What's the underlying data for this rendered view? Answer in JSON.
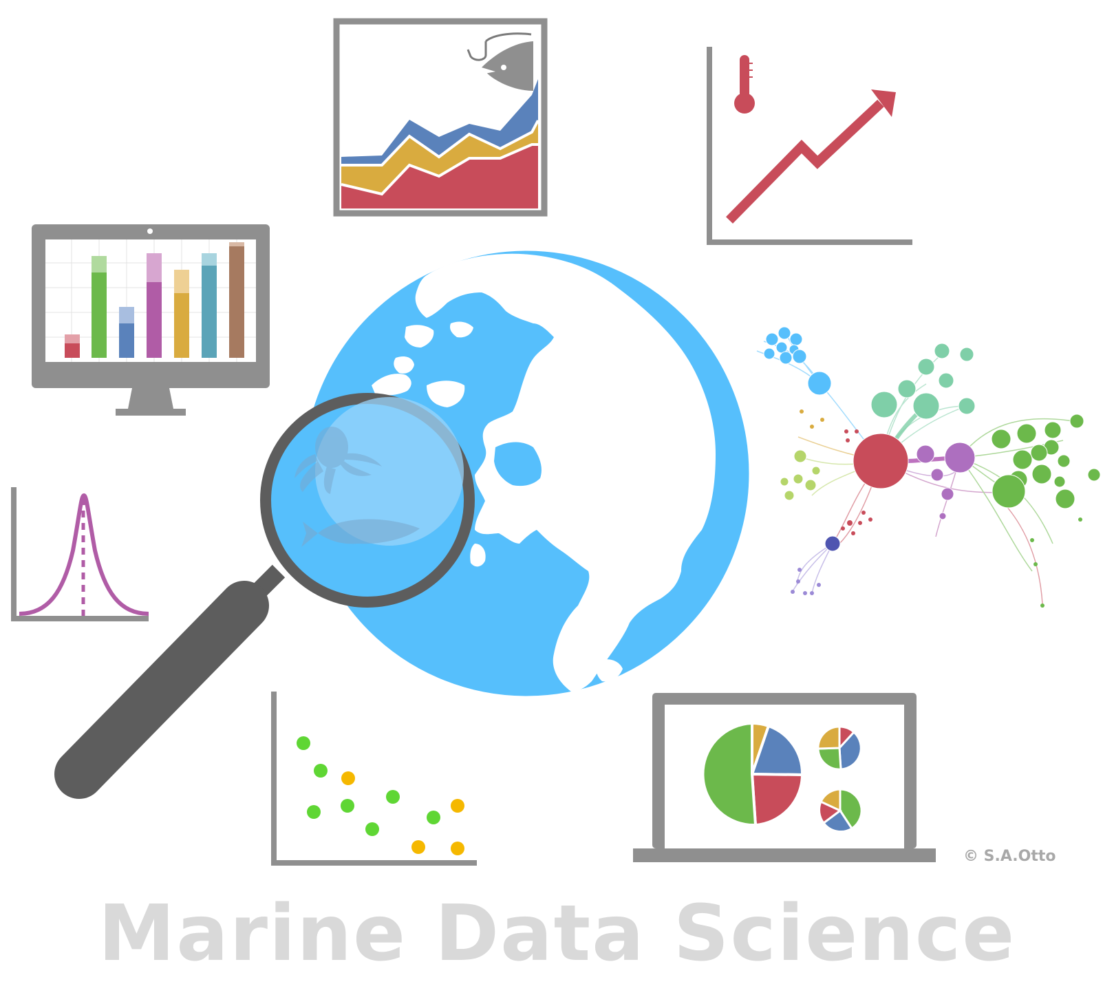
{
  "title": "Marine Data Science",
  "copyright": "© S.A.Otto",
  "colors": {
    "globe_ocean": "#56bffc",
    "land": "#ffffff",
    "frame_gray": "#8f8f8f",
    "magnifier_dark": "#5d5d5d",
    "red": "#c84c5a",
    "green": "#6cb94b",
    "blue": "#5a82bb",
    "gold": "#d9ab3f",
    "magenta": "#b05ca6",
    "teal": "#5ba4b8",
    "brown": "#a67a60",
    "title_gray": "#d9d9d9"
  },
  "icons": [
    "globe-icon",
    "magnifier-icon",
    "octopus-icon",
    "fish-icon",
    "monitor-bar-chart-icon",
    "stacked-area-chart-icon",
    "fishhook-icon",
    "temperature-trend-icon",
    "thermometer-icon",
    "network-graph-icon",
    "normal-distribution-icon",
    "scatter-plot-icon",
    "laptop-pie-charts-icon"
  ]
}
